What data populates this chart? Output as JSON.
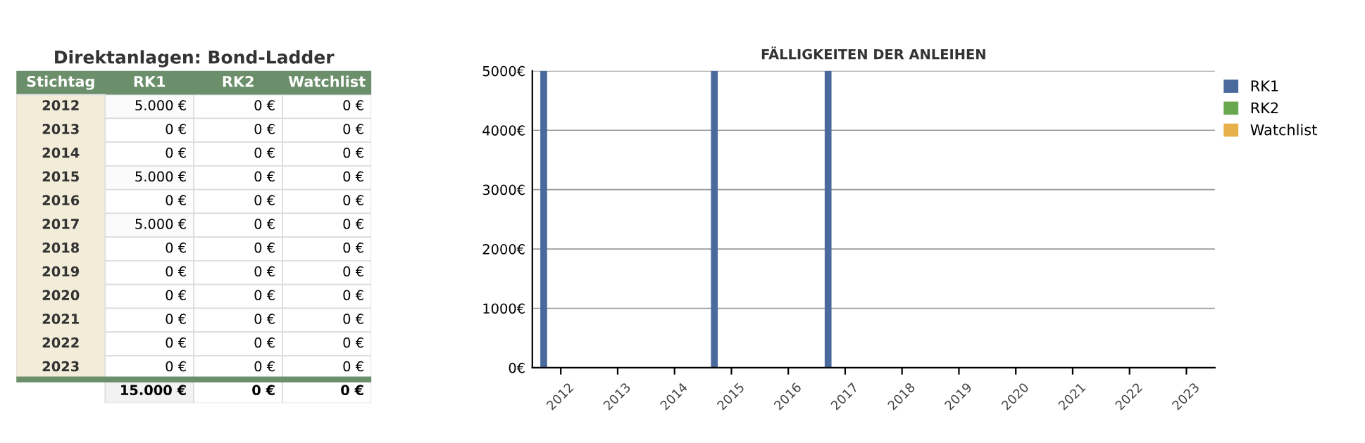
{
  "chart_data": [
    {
      "type": "heatmap",
      "title": "Direktanlagen: Bond-Ladder",
      "ylabel": "Stichtag",
      "categories": [
        "RK1",
        "RK2",
        "Watchlist"
      ],
      "y_categories": [
        "2012",
        "2013",
        "2014",
        "2015",
        "2016",
        "2017",
        "2018",
        "2019",
        "2020",
        "2021",
        "2022",
        "2023",
        null
      ],
      "cells": [
        [
          5000,
          0,
          0
        ],
        [
          0,
          0,
          0
        ],
        [
          0,
          0,
          0
        ],
        [
          5000,
          0,
          0
        ],
        [
          0,
          0,
          0
        ],
        [
          5000,
          0,
          0
        ],
        [
          0,
          0,
          0
        ],
        [
          0,
          0,
          0
        ],
        [
          0,
          0,
          0
        ],
        [
          0,
          0,
          0
        ],
        [
          0,
          0,
          0
        ],
        [
          0,
          0,
          0
        ],
        [
          15000,
          0,
          0
        ]
      ],
      "cell_labels": [
        [
          "5.000 €",
          "0 €",
          "0 €"
        ],
        [
          "0 €",
          "0 €",
          "0 €"
        ],
        [
          "0 €",
          "0 €",
          "0 €"
        ],
        [
          "5.000 €",
          "0 €",
          "0 €"
        ],
        [
          "0 €",
          "0 €",
          "0 €"
        ],
        [
          "5.000 €",
          "0 €",
          "0 €"
        ],
        [
          "0 €",
          "0 €",
          "0 €"
        ],
        [
          "0 €",
          "0 €",
          "0 €"
        ],
        [
          "0 €",
          "0 €",
          "0 €"
        ],
        [
          "0 €",
          "0 €",
          "0 €"
        ],
        [
          "0 €",
          "0 €",
          "0 €"
        ],
        [
          "0 €",
          "0 €",
          "0 €"
        ],
        [
          "15.000 €",
          "0 €",
          "0 €"
        ]
      ]
    },
    {
      "type": "bar",
      "title": "FÄLLIGKEITEN DER ANLEIHEN",
      "categories": [
        "2012",
        "2013",
        "2014",
        "2015",
        "2016",
        "2017",
        "2018",
        "2019",
        "2020",
        "2021",
        "2022",
        "2023"
      ],
      "series": [
        {
          "name": "RK1",
          "color": "#4a6a9e",
          "values": [
            5000,
            0,
            0,
            5000,
            0,
            5000,
            0,
            0,
            0,
            0,
            0,
            0
          ]
        },
        {
          "name": "RK2",
          "color": "#6aa84f",
          "values": [
            0,
            0,
            0,
            0,
            0,
            0,
            0,
            0,
            0,
            0,
            0,
            0
          ]
        },
        {
          "name": "Watchlist",
          "color": "#e8b04a",
          "values": [
            0,
            0,
            0,
            0,
            0,
            0,
            0,
            0,
            0,
            0,
            0,
            0
          ]
        }
      ],
      "ylim": [
        0,
        5000
      ],
      "yticks": [
        {
          "value": 0,
          "label": "0€"
        },
        {
          "value": 1000,
          "label": "1000€"
        },
        {
          "value": 2000,
          "label": "2000€"
        },
        {
          "value": 3000,
          "label": "3000€"
        },
        {
          "value": 4000,
          "label": "4000€"
        },
        {
          "value": 5000,
          "label": "5000€"
        }
      ],
      "grid": "y",
      "legend": "top right"
    }
  ]
}
